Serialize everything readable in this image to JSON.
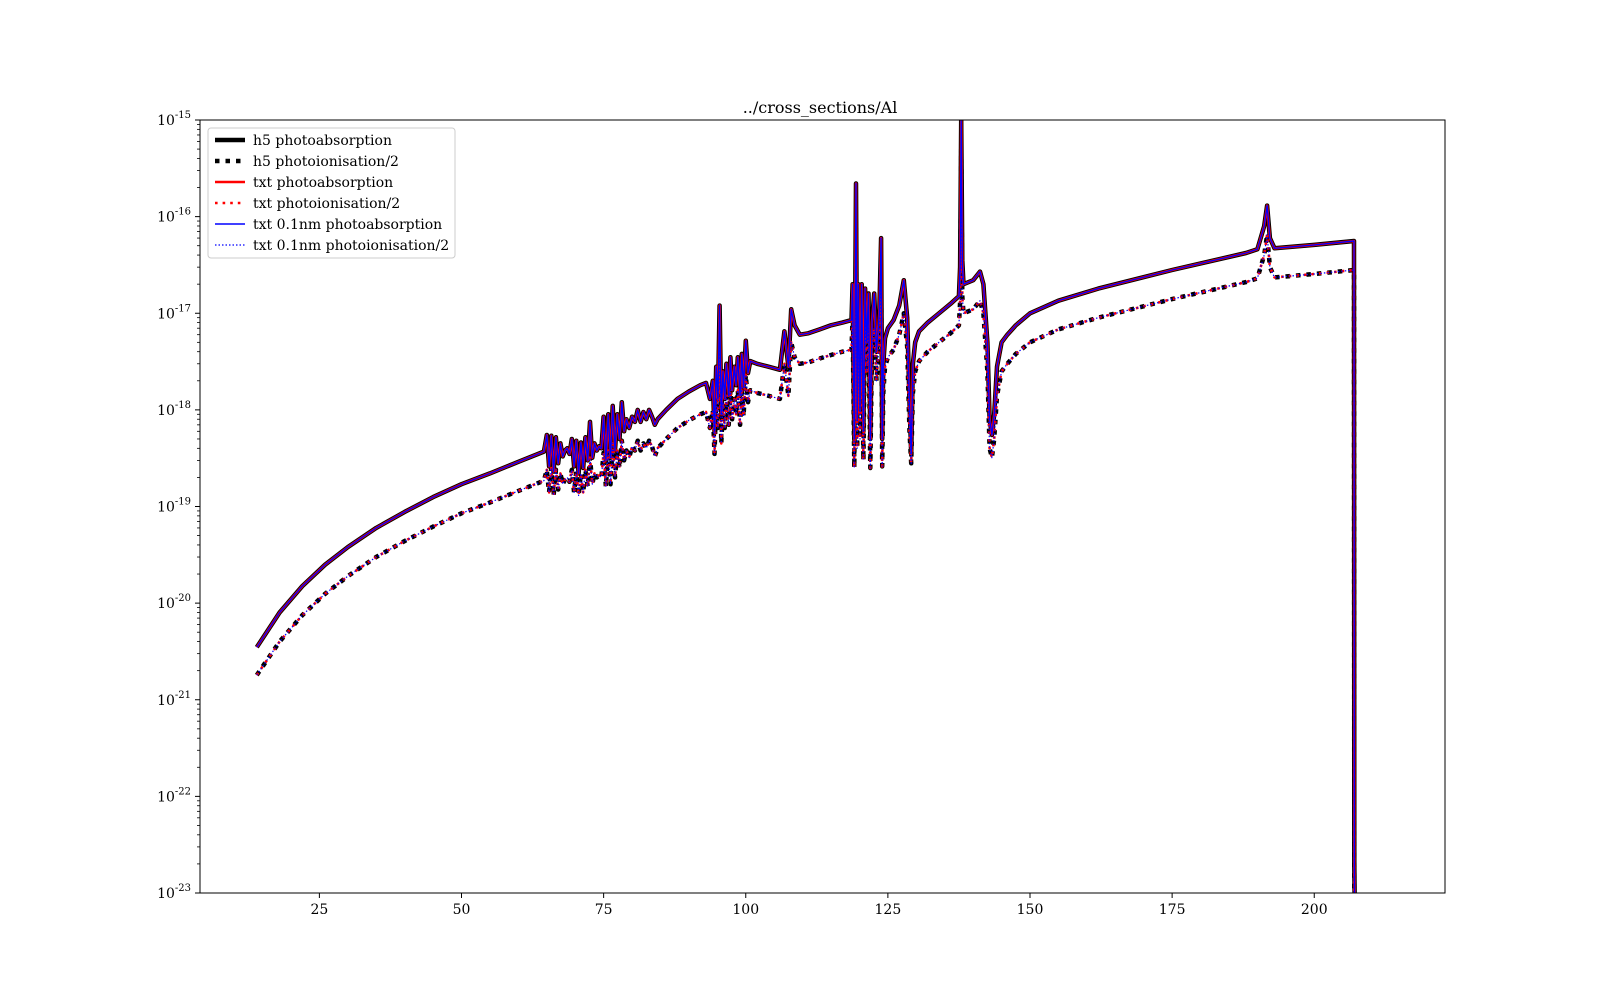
{
  "chart_data": {
    "type": "line",
    "title": "../cross_sections/Al",
    "xlabel": "",
    "ylabel": "",
    "xlim": [
      4,
      223
    ],
    "ylim": [
      1e-23,
      1e-15
    ],
    "yscale": "log",
    "x_ticks": [
      25,
      50,
      75,
      100,
      125,
      150,
      175,
      200
    ],
    "x_tick_labels": [
      "25",
      "50",
      "75",
      "100",
      "125",
      "150",
      "175",
      "200"
    ],
    "y_ticks": [
      1e-23,
      1e-22,
      1e-21,
      1e-20,
      1e-19,
      1e-18,
      1e-17,
      1e-16,
      1e-15
    ],
    "y_tick_labels": [
      {
        "base": "10",
        "exp": "-23"
      },
      {
        "base": "10",
        "exp": "-22"
      },
      {
        "base": "10",
        "exp": "-21"
      },
      {
        "base": "10",
        "exp": "-20"
      },
      {
        "base": "10",
        "exp": "-19"
      },
      {
        "base": "10",
        "exp": "-18"
      },
      {
        "base": "10",
        "exp": "-17"
      },
      {
        "base": "10",
        "exp": "-16"
      },
      {
        "base": "10",
        "exp": "-15"
      }
    ],
    "grid": false,
    "legend_position": "top-left",
    "series": [
      {
        "name": "h5 photoabsorption",
        "color": "#000000",
        "style": "solid",
        "source": "absorption"
      },
      {
        "name": "h5 photoionisation/2",
        "color": "#000000",
        "style": "dotted",
        "source": "ionisation"
      },
      {
        "name": "txt photoabsorption",
        "color": "#ff0000",
        "style": "solid",
        "source": "absorption"
      },
      {
        "name": "txt photoionisation/2",
        "color": "#ff0000",
        "style": "dotted",
        "source": "ionisation"
      },
      {
        "name": "txt 0.1nm photoabsorption",
        "color": "#0000ff",
        "style": "solid",
        "source": "absorption"
      },
      {
        "name": "txt 0.1nm photoionisation/2",
        "color": "#0000ff",
        "style": "dotted",
        "source": "ionisation"
      }
    ],
    "absorption": {
      "x": [
        14,
        18,
        22,
        26,
        30,
        35,
        40,
        45,
        50,
        55,
        60,
        64.5,
        65,
        65.4,
        65.8,
        66.2,
        66.6,
        67,
        67.4,
        67.8,
        68.2,
        68.6,
        69,
        69.4,
        69.8,
        70.2,
        70.6,
        71,
        71.4,
        71.8,
        72.2,
        72.6,
        73,
        73.4,
        73.8,
        74.2,
        74.6,
        75,
        75.4,
        75.8,
        76.2,
        76.6,
        77,
        77.4,
        77.8,
        78.2,
        78.6,
        79,
        79.5,
        80,
        80.5,
        81,
        81.5,
        82,
        82.5,
        83,
        83.5,
        84,
        84.5,
        86,
        88,
        90,
        92,
        93,
        93.7,
        94.2,
        94.5,
        94.8,
        95.1,
        95.4,
        95.7,
        96,
        96.3,
        96.6,
        97,
        97.3,
        97.6,
        98,
        98.3,
        98.6,
        99,
        99.3,
        99.6,
        100,
        100.4,
        100.8,
        102,
        104,
        106,
        106.8,
        107.5,
        108,
        108.6,
        109.5,
        111,
        113,
        115,
        117,
        118.6,
        118.8,
        119.1,
        119.4,
        119.6,
        119.8,
        120.1,
        120.4,
        120.7,
        121,
        121.3,
        121.6,
        121.9,
        122.2,
        122.6,
        123,
        123.5,
        123.8,
        124,
        124.2,
        124.5,
        125,
        126,
        127,
        127.8,
        128.4,
        128.8,
        129.1,
        129.4,
        129.8,
        130.5,
        132,
        134,
        136,
        137.5,
        137.7,
        137.9,
        138.1,
        138.3,
        140,
        141.2,
        141.8,
        142.5,
        142.9,
        143.3,
        143.7,
        144.2,
        145,
        146,
        147.5,
        150,
        155,
        162,
        175,
        188,
        190,
        191.2,
        191.7,
        192.2,
        193,
        200,
        207,
        207.05,
        207.1
      ],
      "y": [
        3.5e-21,
        8e-21,
        1.5e-20,
        2.5e-20,
        3.8e-20,
        6e-20,
        8.8e-20,
        1.25e-19,
        1.7e-19,
        2.2e-19,
        2.9e-19,
        3.7e-19,
        5.5e-19,
        2.6e-19,
        5.4e-19,
        2.3e-19,
        5.2e-19,
        2.8e-19,
        4.5e-19,
        3.3e-19,
        3.8e-19,
        4e-19,
        3.5e-19,
        5e-19,
        2.6e-19,
        4.8e-19,
        2.2e-19,
        4.6e-19,
        2.5e-19,
        5.2e-19,
        3e-19,
        7.5e-19,
        3.2e-19,
        4.5e-19,
        3.8e-19,
        4.2e-19,
        4e-19,
        8.5e-19,
        3e-19,
        9e-19,
        3.2e-19,
        1.1e-18,
        3.8e-19,
        9e-19,
        5e-19,
        1.2e-18,
        6e-19,
        8e-19,
        6.5e-19,
        8.5e-19,
        7.5e-19,
        1e-18,
        7.5e-19,
        9.5e-19,
        8e-19,
        1e-18,
        8.5e-19,
        7e-19,
        8e-19,
        1e-18,
        1.3e-18,
        1.55e-18,
        1.8e-18,
        1.9e-18,
        1.3e-18,
        2e-18,
        6e-19,
        2.8e-18,
        1.3e-18,
        1.2e-17,
        9e-19,
        2.5e-18,
        1.3e-18,
        3e-18,
        1.4e-18,
        3.5e-18,
        1.6e-18,
        2.8e-18,
        1.8e-18,
        3.5e-18,
        1.4e-18,
        3.8e-18,
        1.7e-18,
        5.2e-18,
        2.4e-18,
        3.2e-18,
        3e-18,
        2.8e-18,
        2.6e-18,
        6.5e-18,
        2.8e-18,
        1.1e-17,
        7.5e-18,
        6e-18,
        6.2e-18,
        6.8e-18,
        7.5e-18,
        8e-18,
        8.5e-18,
        2e-17,
        5e-19,
        2.2e-16,
        8e-19,
        2e-17,
        1e-18,
        2e-17,
        6e-19,
        1.8e-17,
        5e-18,
        1.6e-17,
        5e-19,
        8e-18,
        1.6e-17,
        4e-18,
        1e-17,
        6e-17,
        5e-19,
        3e-18,
        5.5e-18,
        7e-18,
        8.5e-18,
        1.2e-17,
        2.2e-17,
        9e-18,
        1.2e-18,
        3.5e-19,
        3e-18,
        5e-18,
        6.5e-18,
        8e-18,
        1e-17,
        1.25e-17,
        1.5e-17,
        3e-17,
        1e-15,
        3.5e-17,
        2e-17,
        2.2e-17,
        2.7e-17,
        2e-17,
        5e-18,
        8e-19,
        5.5e-19,
        9e-19,
        2.8e-18,
        5e-18,
        6e-18,
        7.5e-18,
        1e-17,
        1.35e-17,
        1.8e-17,
        2.8e-17,
        4.2e-17,
        4.6e-17,
        8e-17,
        1.3e-16,
        6e-17,
        4.7e-17,
        5.1e-17,
        5.6e-17,
        2e-23,
        1e-23
      ]
    },
    "ionisation": {
      "x": [
        14,
        18,
        22,
        26,
        30,
        35,
        40,
        45,
        50,
        55,
        60,
        64.5,
        65,
        65.4,
        65.8,
        66.2,
        66.6,
        67,
        67.4,
        67.8,
        68.2,
        68.6,
        69,
        69.4,
        69.8,
        70.2,
        70.6,
        71,
        71.4,
        71.8,
        72.2,
        72.6,
        73,
        73.4,
        73.8,
        74.2,
        74.6,
        75,
        75.4,
        75.8,
        76.2,
        76.6,
        77,
        77.4,
        77.8,
        78.2,
        78.6,
        79,
        79.5,
        80,
        80.5,
        81,
        81.5,
        82,
        82.5,
        83,
        83.5,
        84,
        84.5,
        86,
        88,
        90,
        92,
        93,
        93.7,
        94.2,
        94.5,
        94.8,
        95.1,
        95.4,
        95.7,
        96,
        96.3,
        96.6,
        97,
        97.3,
        97.6,
        98,
        98.3,
        98.6,
        99,
        99.3,
        99.6,
        100,
        100.4,
        100.8,
        102,
        104,
        106,
        106.8,
        107.5,
        108,
        108.6,
        109.5,
        111,
        113,
        115,
        117,
        118.6,
        118.8,
        119.1,
        119.4,
        119.6,
        119.8,
        120.1,
        120.4,
        120.7,
        121,
        121.3,
        121.6,
        121.9,
        122.2,
        122.6,
        123,
        123.5,
        123.8,
        124,
        124.2,
        124.5,
        125,
        126,
        127,
        127.8,
        128.4,
        128.8,
        129.1,
        129.4,
        129.8,
        130.5,
        132,
        134,
        136,
        137.5,
        137.7,
        137.9,
        138.1,
        138.3,
        140,
        141.2,
        141.8,
        142.5,
        142.9,
        143.3,
        143.7,
        144.2,
        145,
        146,
        147.5,
        150,
        155,
        162,
        175,
        188,
        190,
        191.2,
        191.7,
        192.2,
        193,
        200,
        207,
        207.05,
        207.1
      ],
      "y": [
        1.8e-21,
        4e-21,
        7.5e-21,
        1.25e-20,
        1.9e-20,
        3e-20,
        4.4e-20,
        6.2e-20,
        8.5e-20,
        1.1e-19,
        1.45e-19,
        1.85e-19,
        2.4e-19,
        1.4e-19,
        2.5e-19,
        1.3e-19,
        2.4e-19,
        1.5e-19,
        2.2e-19,
        1.7e-19,
        1.9e-19,
        2e-19,
        1.8e-19,
        2.4e-19,
        1.4e-19,
        2.3e-19,
        1.3e-19,
        2.2e-19,
        1.4e-19,
        2.4e-19,
        1.6e-19,
        3.2e-19,
        1.7e-19,
        2.2e-19,
        2e-19,
        2.1e-19,
        2e-19,
        3.6e-19,
        1.6e-19,
        3.8e-19,
        1.7e-19,
        4.5e-19,
        2e-19,
        3.8e-19,
        2.5e-19,
        4.8e-19,
        3e-19,
        3.8e-19,
        3.2e-19,
        4.2e-19,
        3.8e-19,
        4.8e-19,
        3.8e-19,
        4.5e-19,
        4e-19,
        4.8e-19,
        4.2e-19,
        3.3e-19,
        4e-19,
        5e-19,
        6.5e-19,
        7.8e-19,
        9e-19,
        9.5e-19,
        6.5e-19,
        1e-18,
        3.5e-19,
        1.3e-18,
        6.5e-19,
        5e-18,
        4.5e-19,
        1.2e-18,
        6.5e-19,
        1.4e-18,
        7e-19,
        1.6e-18,
        8e-19,
        1.3e-18,
        9e-19,
        1.6e-18,
        7e-19,
        1.7e-18,
        8.5e-19,
        2.3e-18,
        1.2e-18,
        1.6e-18,
        1.5e-18,
        1.4e-18,
        1.3e-18,
        3e-18,
        1.4e-18,
        5e-18,
        3.5e-18,
        3e-18,
        3.1e-18,
        3.4e-18,
        3.7e-18,
        4e-18,
        4.2e-18,
        9e-18,
        2.5e-19,
        8e-17,
        4e-19,
        9e-18,
        5e-19,
        9e-18,
        3e-19,
        8e-18,
        2.5e-18,
        7e-18,
        2.5e-19,
        4e-18,
        7e-18,
        2e-18,
        5e-18,
        2.6e-17,
        2.6e-19,
        1.5e-18,
        2.8e-18,
        3.5e-18,
        4.2e-18,
        6e-18,
        1e-17,
        4.5e-18,
        6e-19,
        2.8e-19,
        1.5e-18,
        2.5e-18,
        3.2e-18,
        4e-18,
        5e-18,
        6.2e-18,
        7.5e-18,
        1.3e-17,
        5e-16,
        1.5e-17,
        1e-17,
        1.1e-17,
        1.35e-17,
        1e-17,
        2.5e-18,
        4e-19,
        3.2e-19,
        5e-19,
        1.4e-18,
        2.5e-18,
        3e-18,
        3.8e-18,
        5e-18,
        6.8e-18,
        9e-18,
        1.4e-17,
        2.1e-17,
        2.3e-17,
        4e-17,
        6.5e-17,
        3e-17,
        2.35e-17,
        2.55e-17,
        2.8e-17,
        1e-23,
        1e-23
      ]
    }
  }
}
